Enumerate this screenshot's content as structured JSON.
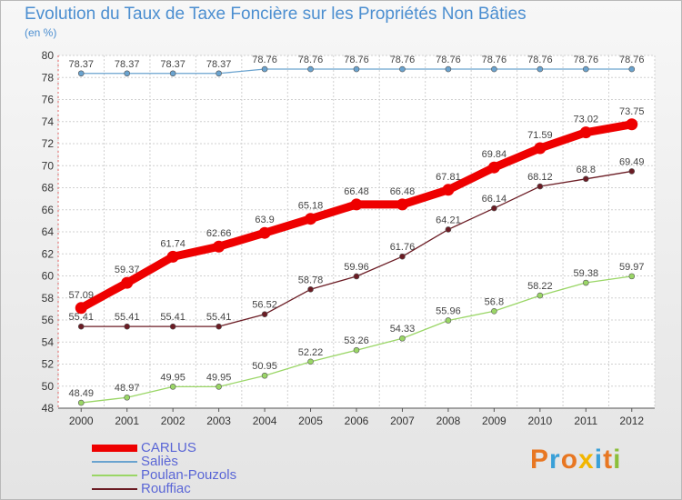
{
  "header": {
    "title": "Evolution du Taux de Taxe Foncière sur les Propriétés Non Bâties",
    "unit": "(en %)"
  },
  "logo": {
    "text": "Proxiti",
    "colors": [
      "#e87722",
      "#3aa0d8",
      "#e87722",
      "#f2b600",
      "#3aa0d8",
      "#e87722",
      "#8bbf3b"
    ]
  },
  "chart_data": {
    "type": "line",
    "title": "Evolution du Taux de Taxe Foncière sur les Propriétés Non Bâties",
    "ylabel": "(en %)",
    "xlabel": "",
    "x": [
      2000,
      2001,
      2002,
      2003,
      2004,
      2005,
      2006,
      2007,
      2008,
      2009,
      2010,
      2011,
      2012
    ],
    "ylim": [
      48,
      80
    ],
    "yticks": [
      48,
      50,
      52,
      54,
      56,
      58,
      60,
      62,
      64,
      66,
      68,
      70,
      72,
      74,
      76,
      78,
      80
    ],
    "grid": true,
    "legend_position": "bottom-left",
    "series": [
      {
        "name": "CARLUS",
        "color": "#ee0000",
        "emphasis": true,
        "values": [
          57.09,
          59.37,
          61.74,
          62.66,
          63.9,
          65.18,
          66.48,
          66.48,
          67.81,
          69.84,
          71.59,
          73.02,
          73.75
        ],
        "labels": [
          "57.09",
          "59.37",
          "61.74",
          "62.66",
          "63.9",
          "65.18",
          "66.48",
          "66.48",
          "67.81",
          "69.84",
          "71.59",
          "73.02",
          "73.75"
        ]
      },
      {
        "name": "Saliès",
        "color": "#6aa3cf",
        "emphasis": false,
        "values": [
          78.37,
          78.37,
          78.37,
          78.37,
          78.76,
          78.76,
          78.76,
          78.76,
          78.76,
          78.76,
          78.76,
          78.76,
          78.76
        ],
        "labels": [
          "78.37",
          "78.37",
          "78.37",
          "78.37",
          "78.76",
          "78.76",
          "78.76",
          "78.76",
          "78.76",
          "78.76",
          "78.76",
          "78.76",
          "78.76"
        ]
      },
      {
        "name": "Poulan-Pouzols",
        "color": "#9ad666",
        "emphasis": false,
        "values": [
          48.49,
          48.97,
          49.95,
          49.95,
          50.95,
          52.22,
          53.26,
          54.33,
          55.96,
          56.8,
          58.22,
          59.38,
          59.97
        ],
        "labels": [
          "48.49",
          "48.97",
          "49.95",
          "49.95",
          "50.95",
          "52.22",
          "53.26",
          "54.33",
          "55.96",
          "56.8",
          "58.22",
          "59.38",
          "59.97"
        ]
      },
      {
        "name": "Rouffiac",
        "color": "#6b1c24",
        "emphasis": false,
        "values": [
          55.41,
          55.41,
          55.41,
          55.41,
          56.52,
          58.78,
          59.96,
          61.76,
          64.21,
          66.14,
          68.12,
          68.8,
          69.49
        ],
        "labels": [
          "55.41",
          "55.41",
          "55.41",
          "55.41",
          "56.52",
          "58.78",
          "59.96",
          "61.76",
          "64.21",
          "66.14",
          "68.12",
          "68.8",
          "69.49"
        ]
      }
    ]
  }
}
